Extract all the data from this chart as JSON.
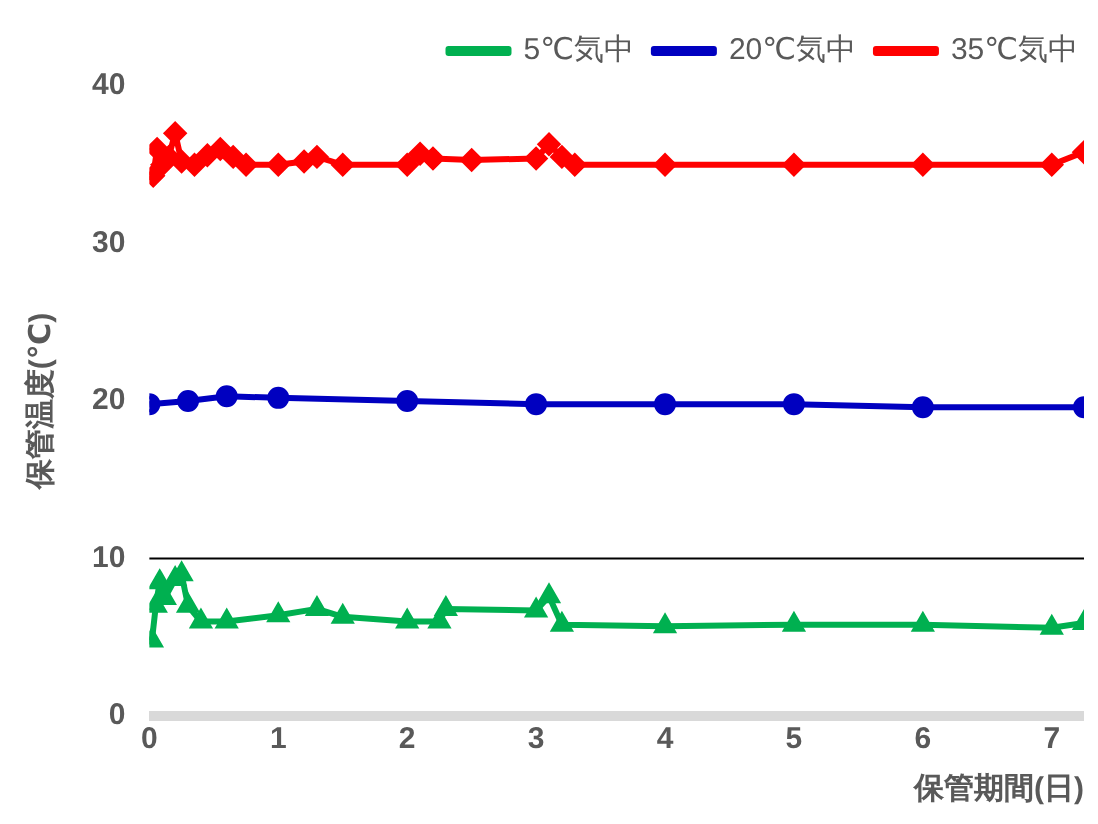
{
  "chart_data": {
    "type": "line",
    "xlabel": "保管期間(日)",
    "ylabel": "保管温度(℃)",
    "xlim": [
      0,
      7.25
    ],
    "xticks": [
      0,
      1,
      2,
      3,
      4,
      5,
      6,
      7
    ],
    "ylim": [
      0,
      40
    ],
    "yticks": [
      0,
      10,
      20,
      30,
      40
    ],
    "grid": false,
    "legend": "top",
    "ref_lines": [
      {
        "axis": "y",
        "value": 10,
        "color": "#000000"
      }
    ],
    "series": [
      {
        "name": "5℃気中",
        "color": "#00b050",
        "marker": "triangle",
        "x": [
          0.02,
          0.05,
          0.08,
          0.12,
          0.2,
          0.25,
          0.3,
          0.4,
          0.6,
          1,
          1.3,
          1.5,
          2,
          2.25,
          2.3,
          3,
          3.1,
          3.2,
          4,
          5,
          6,
          7,
          7.25
        ],
        "values": [
          4.8,
          7,
          8.5,
          7.5,
          8.7,
          9,
          7,
          6,
          6,
          6.4,
          6.8,
          6.3,
          6,
          6,
          6.8,
          6.7,
          7.6,
          5.8,
          5.7,
          5.8,
          5.8,
          5.6,
          5.9
        ]
      },
      {
        "name": "20℃気中",
        "color": "#0000c0",
        "marker": "circle",
        "x": [
          0,
          0.3,
          0.6,
          1,
          2,
          3,
          4,
          5,
          6,
          7.25
        ],
        "values": [
          19.8,
          20,
          20.3,
          20.2,
          20,
          19.8,
          19.8,
          19.8,
          19.6,
          19.6
        ]
      },
      {
        "name": "35℃気中",
        "color": "#ff0000",
        "marker": "diamond",
        "x": [
          0.03,
          0.06,
          0.1,
          0.15,
          0.2,
          0.25,
          0.35,
          0.45,
          0.55,
          0.65,
          0.75,
          1,
          1.2,
          1.3,
          1.5,
          2,
          2.1,
          2.2,
          2.5,
          3,
          3.1,
          3.2,
          3.3,
          4,
          5,
          6,
          7,
          7.25
        ],
        "values": [
          34.3,
          36,
          35,
          35.5,
          37,
          35.2,
          35,
          35.6,
          36,
          35.5,
          35,
          35,
          35.2,
          35.5,
          35,
          35,
          35.7,
          35.4,
          35.3,
          35.4,
          36.3,
          35.5,
          35,
          35,
          35,
          35,
          35,
          35.8
        ]
      }
    ]
  }
}
